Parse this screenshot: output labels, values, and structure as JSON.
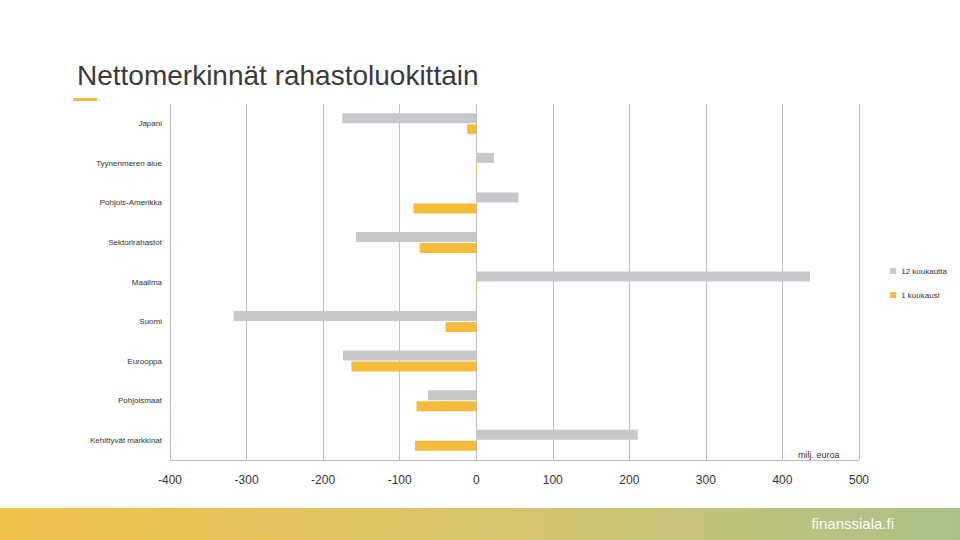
{
  "chart_data": {
    "type": "bar",
    "title": "Nettomerkinnät rahastoluokittain",
    "orientation": "horizontal",
    "categories": [
      "Japani",
      "Tyynenmeren alue",
      "Pohjois-Amerikka",
      "Sektorirahastot",
      "Maailma",
      "Suomi",
      "Eurooppa",
      "Pohjoismaat",
      "Kehittyvät markkinat"
    ],
    "series": [
      {
        "name": "12 kuukautta",
        "color": "#c8c8cc",
        "values": [
          -175,
          23,
          55,
          -157,
          436,
          -317,
          -174,
          -63,
          211
        ]
      },
      {
        "name": "1 kuukausi",
        "color": "#f5bb3a",
        "values": [
          -12,
          1,
          -82,
          -74,
          1,
          -40,
          -163,
          -78,
          -80
        ]
      }
    ],
    "xlabel": "milj. euroa",
    "xlim": [
      -400,
      500
    ],
    "xticks": [
      -400,
      -300,
      -200,
      -100,
      0,
      100,
      200,
      300,
      400,
      500
    ],
    "grid": true,
    "legend": "right",
    "annotations": [
      "finanssiala.fi"
    ]
  }
}
